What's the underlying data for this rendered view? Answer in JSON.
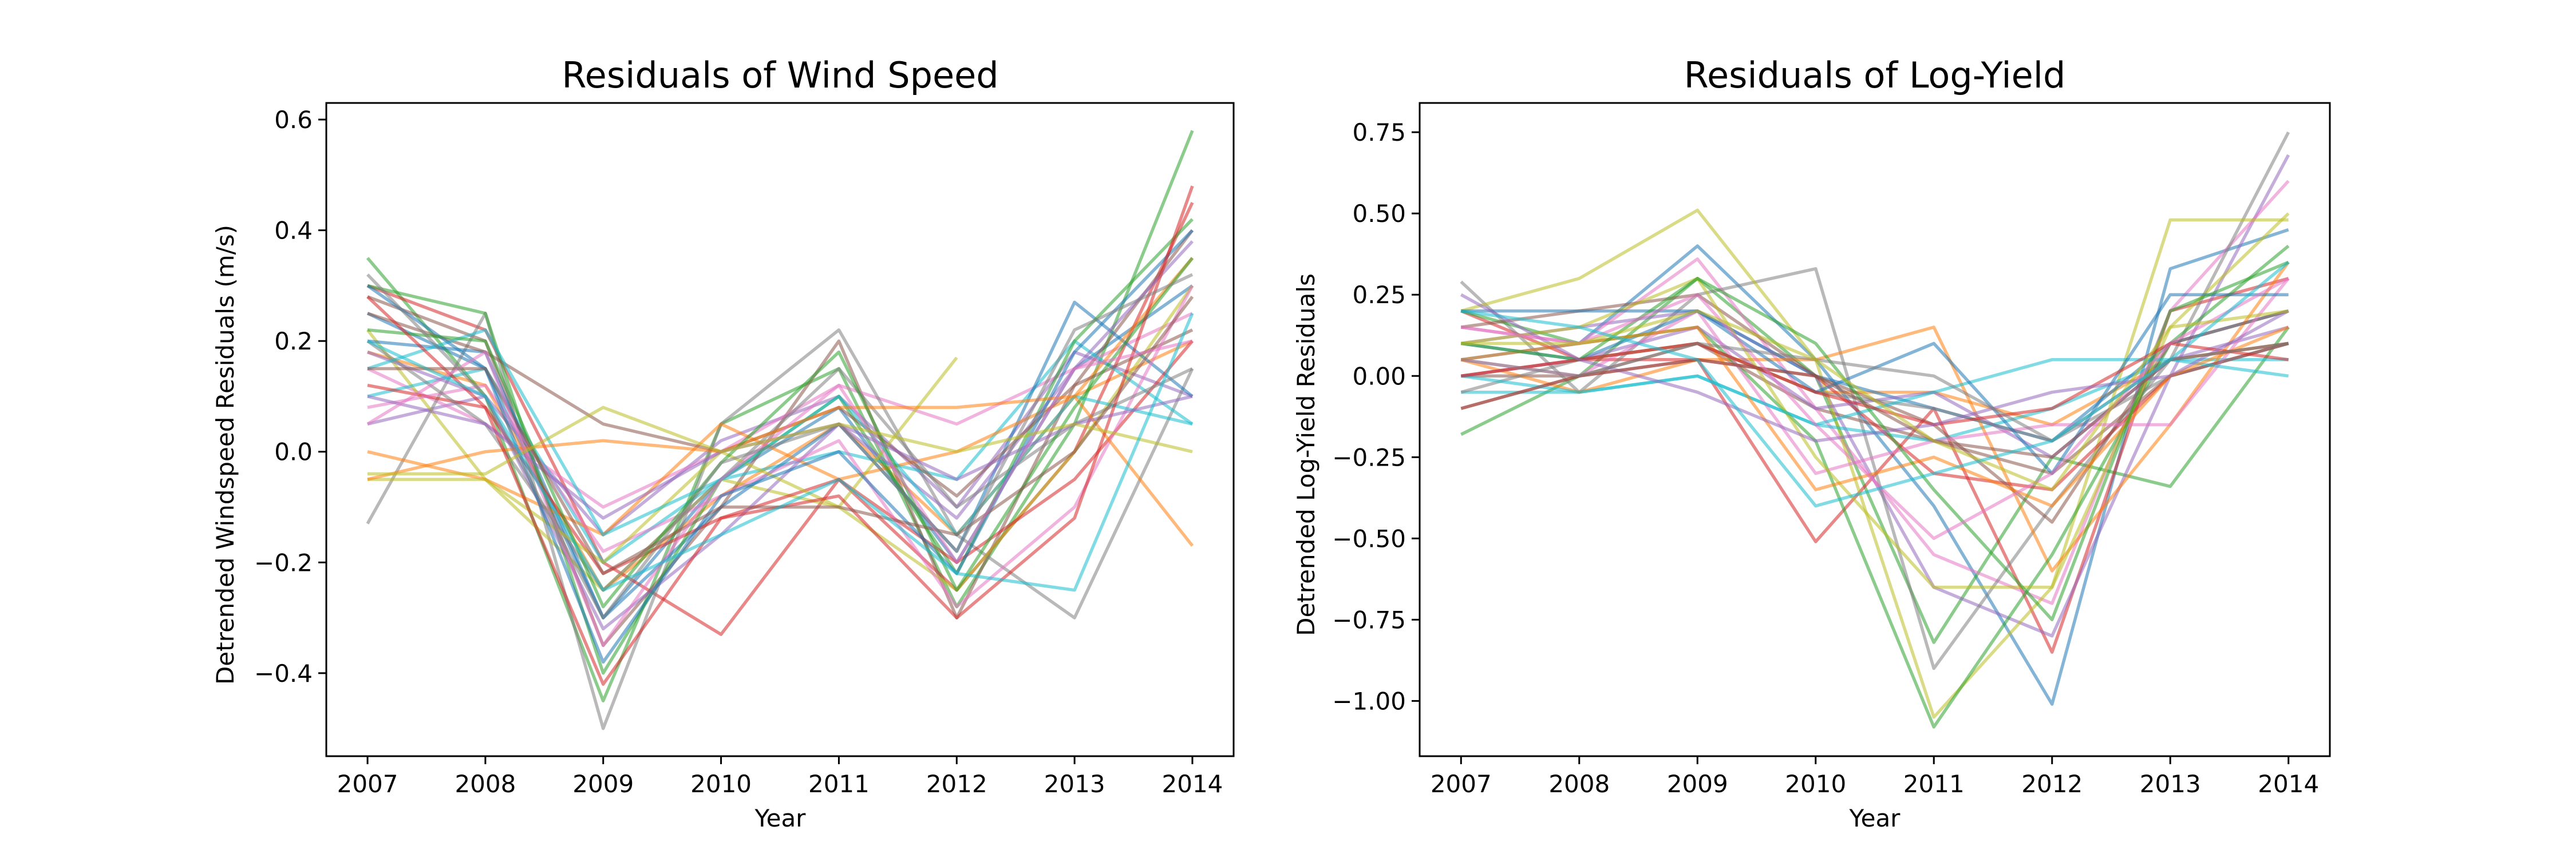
{
  "chart_data": [
    {
      "type": "line",
      "title": "Residuals of Wind Speed",
      "xlabel": "Year",
      "ylabel": "Detrended Windspeed Residuals (m/s)",
      "x": [
        2007,
        2008,
        2009,
        2010,
        2011,
        2012,
        2013,
        2014
      ],
      "xlim": [
        2006.65,
        2014.35
      ],
      "ylim": [
        -0.55,
        0.63
      ],
      "yticks": [
        -0.4,
        -0.2,
        0.0,
        0.2,
        0.4,
        0.6
      ],
      "ytick_labels": [
        "−0.4",
        "−0.2",
        "0.0",
        "0.2",
        "0.4",
        "0.6"
      ],
      "xtick_labels": [
        "2007",
        "2008",
        "2009",
        "2010",
        "2011",
        "2012",
        "2013",
        "2014"
      ],
      "grid": false,
      "legend": "none",
      "colors": [
        "#1f77b4",
        "#ff7f0e",
        "#2ca02c",
        "#d62728",
        "#9467bd",
        "#8c564b",
        "#e377c2",
        "#7f7f7f",
        "#bcbd22",
        "#17becf"
      ],
      "series": [
        {
          "values": [
            0.25,
            0.15,
            -0.3,
            -0.05,
            0.08,
            -0.2,
            0.15,
            0.3
          ]
        },
        {
          "values": [
            0.18,
            0.12,
            -0.25,
            -0.08,
            0.05,
            -0.15,
            0.1,
            0.2
          ]
        },
        {
          "values": [
            0.35,
            0.1,
            -0.45,
            0.05,
            0.15,
            -0.28,
            0.05,
            0.58
          ]
        },
        {
          "values": [
            0.3,
            0.22,
            -0.2,
            -0.33,
            -0.05,
            -0.25,
            0.0,
            0.45
          ]
        },
        {
          "values": [
            0.05,
            0.1,
            -0.15,
            0.02,
            0.1,
            -0.1,
            0.18,
            0.1
          ]
        },
        {
          "values": [
            0.28,
            0.2,
            -0.35,
            -0.1,
            0.2,
            -0.3,
            0.12,
            0.4
          ]
        },
        {
          "values": [
            0.15,
            0.05,
            -0.1,
            0.0,
            0.12,
            0.05,
            0.15,
            0.25
          ]
        },
        {
          "values": [
            -0.13,
            0.25,
            -0.5,
            0.05,
            0.22,
            -0.15,
            -0.3,
            0.15
          ]
        },
        {
          "values": [
            0.22,
            -0.05,
            -0.25,
            -0.05,
            -0.1,
            -0.25,
            0.0,
            0.3
          ]
        },
        {
          "values": [
            0.1,
            0.15,
            -0.2,
            -0.05,
            0.0,
            -0.05,
            0.2,
            0.05
          ]
        },
        {
          "values": [
            0.2,
            0.18,
            -0.3,
            -0.1,
            0.05,
            -0.18,
            0.27,
            0.1
          ]
        },
        {
          "values": [
            0.0,
            -0.05,
            -0.15,
            0.05,
            -0.05,
            0.0,
            0.1,
            0.35
          ]
        },
        {
          "values": [
            0.3,
            0.25,
            -0.4,
            -0.05,
            0.1,
            -0.22,
            0.2,
            0.42
          ]
        },
        {
          "values": [
            0.12,
            0.08,
            -0.22,
            -0.12,
            -0.05,
            -0.2,
            -0.05,
            0.2
          ]
        },
        {
          "values": [
            0.18,
            0.1,
            -0.32,
            -0.15,
            0.05,
            -0.12,
            0.15,
            0.38
          ]
        },
        {
          "values": [
            0.25,
            0.18,
            0.05,
            0.0,
            0.08,
            -0.08,
            0.12,
            0.22
          ]
        },
        {
          "values": [
            0.08,
            0.12,
            -0.18,
            -0.08,
            0.02,
            -0.28,
            -0.1,
            0.3
          ]
        },
        {
          "values": [
            0.2,
            0.05,
            -0.25,
            -0.05,
            0.15,
            -0.1,
            0.05,
            0.15
          ]
        },
        {
          "values": [
            -0.05,
            -0.05,
            -0.2,
            0.0,
            -0.1,
            0.17,
            null,
            null
          ]
        },
        {
          "values": [
            0.15,
            0.22,
            -0.15,
            -0.05,
            0.1,
            -0.15,
            0.1,
            0.05
          ]
        },
        {
          "values": [
            0.3,
            0.15,
            -0.38,
            -0.08,
            0.0,
            -0.22,
            0.18,
            0.4
          ]
        },
        {
          "values": [
            -0.05,
            0.0,
            0.02,
            0.0,
            0.08,
            0.08,
            0.1,
            -0.17
          ]
        },
        {
          "values": [
            0.22,
            0.2,
            -0.28,
            -0.02,
            0.18,
            -0.25,
            0.08,
            0.35
          ]
        },
        {
          "values": [
            0.28,
            0.08,
            -0.42,
            -0.12,
            -0.08,
            -0.3,
            -0.12,
            0.48
          ]
        },
        {
          "values": [
            0.1,
            0.05,
            -0.12,
            0.0,
            0.05,
            -0.05,
            0.05,
            0.1
          ]
        },
        {
          "values": [
            0.15,
            0.15,
            -0.22,
            -0.1,
            -0.1,
            -0.15,
            0.0,
            0.28
          ]
        },
        {
          "values": [
            0.05,
            0.18,
            -0.35,
            -0.05,
            0.12,
            -0.2,
            0.15,
            0.2
          ]
        },
        {
          "values": [
            0.32,
            0.1,
            -0.3,
            -0.02,
            0.05,
            -0.18,
            0.22,
            0.32
          ]
        },
        {
          "values": [
            -0.04,
            -0.04,
            0.08,
            0.0,
            0.05,
            0.0,
            0.05,
            0.0
          ]
        },
        {
          "values": [
            0.2,
            0.1,
            -0.25,
            -0.15,
            -0.05,
            -0.22,
            -0.25,
            0.25
          ]
        }
      ]
    },
    {
      "type": "line",
      "title": "Residuals of Log-Yield",
      "xlabel": "Year",
      "ylabel": "Detrended Log-Yield Residuals",
      "x": [
        2007,
        2008,
        2009,
        2010,
        2011,
        2012,
        2013,
        2014
      ],
      "xlim": [
        2006.65,
        2014.35
      ],
      "ylim": [
        -1.17,
        0.84
      ],
      "yticks": [
        -1.0,
        -0.75,
        -0.5,
        -0.25,
        0.0,
        0.25,
        0.5,
        0.75
      ],
      "ytick_labels": [
        "−1.00",
        "−0.75",
        "−0.50",
        "−0.25",
        "0.00",
        "0.25",
        "0.50",
        "0.75"
      ],
      "xtick_labels": [
        "2007",
        "2008",
        "2009",
        "2010",
        "2011",
        "2012",
        "2013",
        "2014"
      ],
      "grid": false,
      "legend": "none",
      "colors": [
        "#1f77b4",
        "#ff7f0e",
        "#2ca02c",
        "#d62728",
        "#9467bd",
        "#8c564b",
        "#e377c2",
        "#7f7f7f",
        "#bcbd22",
        "#17becf"
      ],
      "series": [
        {
          "values": [
            0.05,
            0.1,
            0.4,
            0.05,
            -0.4,
            -1.01,
            0.33,
            0.45
          ]
        },
        {
          "values": [
            0.0,
            0.05,
            0.1,
            -0.05,
            -0.05,
            -0.15,
            0.05,
            0.1
          ]
        },
        {
          "values": [
            -0.18,
            0.0,
            0.3,
            0.0,
            -0.82,
            -0.25,
            -0.34,
            0.15
          ]
        },
        {
          "values": [
            0.2,
            0.05,
            0.05,
            -0.51,
            -0.1,
            -0.85,
            0.2,
            0.3
          ]
        },
        {
          "values": [
            0.1,
            0.15,
            0.2,
            0.0,
            -0.65,
            -0.8,
            0.0,
            0.68
          ]
        },
        {
          "values": [
            0.0,
            0.0,
            0.1,
            -0.1,
            -0.2,
            -0.3,
            0.0,
            0.1
          ]
        },
        {
          "values": [
            0.15,
            0.1,
            0.36,
            -0.1,
            -0.55,
            -0.7,
            0.2,
            0.6
          ]
        },
        {
          "values": [
            0.29,
            -0.05,
            0.25,
            0.33,
            -0.9,
            -0.4,
            0.05,
            0.75
          ]
        },
        {
          "values": [
            0.2,
            0.3,
            0.51,
            0.05,
            -1.05,
            -0.65,
            0.48,
            0.48
          ]
        },
        {
          "values": [
            -0.05,
            -0.05,
            0.0,
            -0.15,
            -0.2,
            -0.1,
            0.05,
            0.05
          ]
        },
        {
          "values": [
            0.1,
            0.05,
            0.2,
            0.0,
            -0.1,
            -0.2,
            0.1,
            0.2
          ]
        },
        {
          "values": [
            0.05,
            -0.05,
            0.05,
            0.05,
            0.15,
            -0.6,
            -0.15,
            0.35
          ]
        },
        {
          "values": [
            0.2,
            0.1,
            0.15,
            -0.2,
            -1.08,
            -0.55,
            0.1,
            0.4
          ]
        },
        {
          "values": [
            -0.1,
            0.0,
            0.05,
            0.0,
            -0.3,
            -0.35,
            0.0,
            0.1
          ]
        },
        {
          "values": [
            0.0,
            0.05,
            0.15,
            -0.1,
            -0.05,
            -0.25,
            0.05,
            0.15
          ]
        },
        {
          "values": [
            0.15,
            0.2,
            0.25,
            0.0,
            -0.15,
            -0.45,
            0.1,
            0.2
          ]
        },
        {
          "values": [
            0.05,
            0.0,
            0.2,
            -0.3,
            -0.2,
            -0.15,
            -0.15,
            0.3
          ]
        },
        {
          "values": [
            -0.05,
            0.05,
            0.1,
            -0.05,
            -0.1,
            -0.2,
            0.0,
            0.1
          ]
        },
        {
          "values": [
            0.1,
            0.15,
            0.3,
            -0.25,
            -0.65,
            -0.65,
            0.15,
            0.5
          ]
        },
        {
          "values": [
            0.0,
            -0.05,
            0.0,
            -0.15,
            -0.05,
            0.05,
            0.05,
            0.0
          ]
        },
        {
          "values": [
            0.2,
            0.2,
            0.2,
            -0.05,
            0.1,
            -0.3,
            0.25,
            0.25
          ]
        },
        {
          "values": [
            0.05,
            0.1,
            0.15,
            -0.35,
            -0.25,
            -0.4,
            0.0,
            0.15
          ]
        },
        {
          "values": [
            0.1,
            0.05,
            0.3,
            0.1,
            -0.35,
            -0.75,
            0.2,
            0.35
          ]
        },
        {
          "values": [
            0.0,
            0.05,
            0.1,
            -0.05,
            -0.15,
            -0.1,
            0.1,
            0.05
          ]
        },
        {
          "values": [
            0.25,
            0.05,
            -0.05,
            -0.2,
            -0.15,
            -0.05,
            0.0,
            0.2
          ]
        },
        {
          "values": [
            -0.1,
            0.0,
            0.05,
            0.0,
            -0.2,
            -0.25,
            0.05,
            0.1
          ]
        },
        {
          "values": [
            0.15,
            0.1,
            0.25,
            -0.15,
            -0.5,
            -0.3,
            0.1,
            0.3
          ]
        },
        {
          "values": [
            0.05,
            0.0,
            0.1,
            0.05,
            0.0,
            -0.2,
            0.05,
            0.1
          ]
        },
        {
          "values": [
            0.1,
            0.1,
            0.2,
            0.05,
            -0.2,
            -0.35,
            0.15,
            0.2
          ]
        },
        {
          "values": [
            0.2,
            0.15,
            0.05,
            -0.4,
            -0.3,
            -0.2,
            0.05,
            0.35
          ]
        }
      ]
    }
  ]
}
